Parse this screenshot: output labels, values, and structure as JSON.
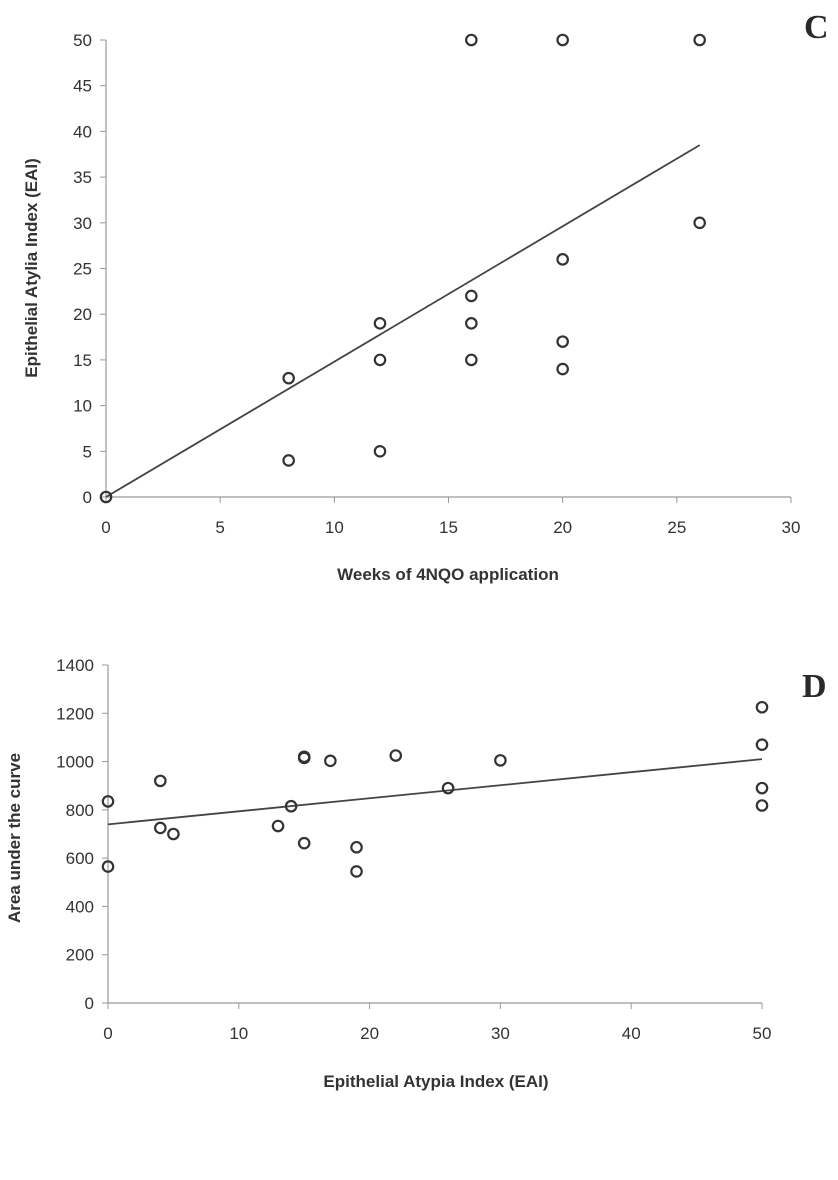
{
  "chart_data": [
    {
      "panel": "C",
      "type": "scatter",
      "title": "",
      "xlabel": "Weeks of 4NQO application",
      "ylabel": "Epithelial Atylia Index (EAI)",
      "xlim": [
        0,
        30
      ],
      "ylim": [
        0,
        50
      ],
      "xticks": [
        0,
        5,
        10,
        15,
        20,
        25,
        30
      ],
      "yticks": [
        0,
        5,
        10,
        15,
        20,
        25,
        30,
        35,
        40,
        45,
        50
      ],
      "grid": false,
      "legend": "none",
      "points": [
        {
          "x": 0,
          "y": 0
        },
        {
          "x": 8,
          "y": 4
        },
        {
          "x": 8,
          "y": 13
        },
        {
          "x": 12,
          "y": 5
        },
        {
          "x": 12,
          "y": 15
        },
        {
          "x": 12,
          "y": 19
        },
        {
          "x": 16,
          "y": 15
        },
        {
          "x": 16,
          "y": 19
        },
        {
          "x": 16,
          "y": 22
        },
        {
          "x": 16,
          "y": 50
        },
        {
          "x": 20,
          "y": 14
        },
        {
          "x": 20,
          "y": 17
        },
        {
          "x": 20,
          "y": 26
        },
        {
          "x": 20,
          "y": 50
        },
        {
          "x": 26,
          "y": 30
        },
        {
          "x": 26,
          "y": 50
        }
      ],
      "trendline": {
        "x": [
          0,
          26
        ],
        "y": [
          0,
          38.5
        ]
      }
    },
    {
      "panel": "D",
      "type": "scatter",
      "title": "",
      "xlabel": "Epithelial Atypia Index (EAI)",
      "ylabel": "Area under the curve",
      "xlim": [
        0,
        50
      ],
      "ylim": [
        0,
        1400
      ],
      "xticks": [
        0,
        10,
        20,
        30,
        40,
        50
      ],
      "yticks": [
        0,
        200,
        400,
        600,
        800,
        1000,
        1200,
        1400
      ],
      "grid": false,
      "legend": "none",
      "points": [
        {
          "x": 0,
          "y": 835
        },
        {
          "x": 0,
          "y": 565
        },
        {
          "x": 4,
          "y": 920
        },
        {
          "x": 4,
          "y": 725
        },
        {
          "x": 5,
          "y": 700
        },
        {
          "x": 13,
          "y": 733
        },
        {
          "x": 14,
          "y": 815
        },
        {
          "x": 15,
          "y": 1015
        },
        {
          "x": 15,
          "y": 1020
        },
        {
          "x": 15,
          "y": 662
        },
        {
          "x": 17,
          "y": 1003
        },
        {
          "x": 19,
          "y": 645
        },
        {
          "x": 19,
          "y": 545
        },
        {
          "x": 22,
          "y": 1025
        },
        {
          "x": 26,
          "y": 890
        },
        {
          "x": 30,
          "y": 1005
        },
        {
          "x": 50,
          "y": 1225
        },
        {
          "x": 50,
          "y": 1070
        },
        {
          "x": 50,
          "y": 890
        },
        {
          "x": 50,
          "y": 818
        }
      ],
      "trendline": {
        "x": [
          0,
          50
        ],
        "y": [
          740,
          1010
        ]
      }
    }
  ]
}
